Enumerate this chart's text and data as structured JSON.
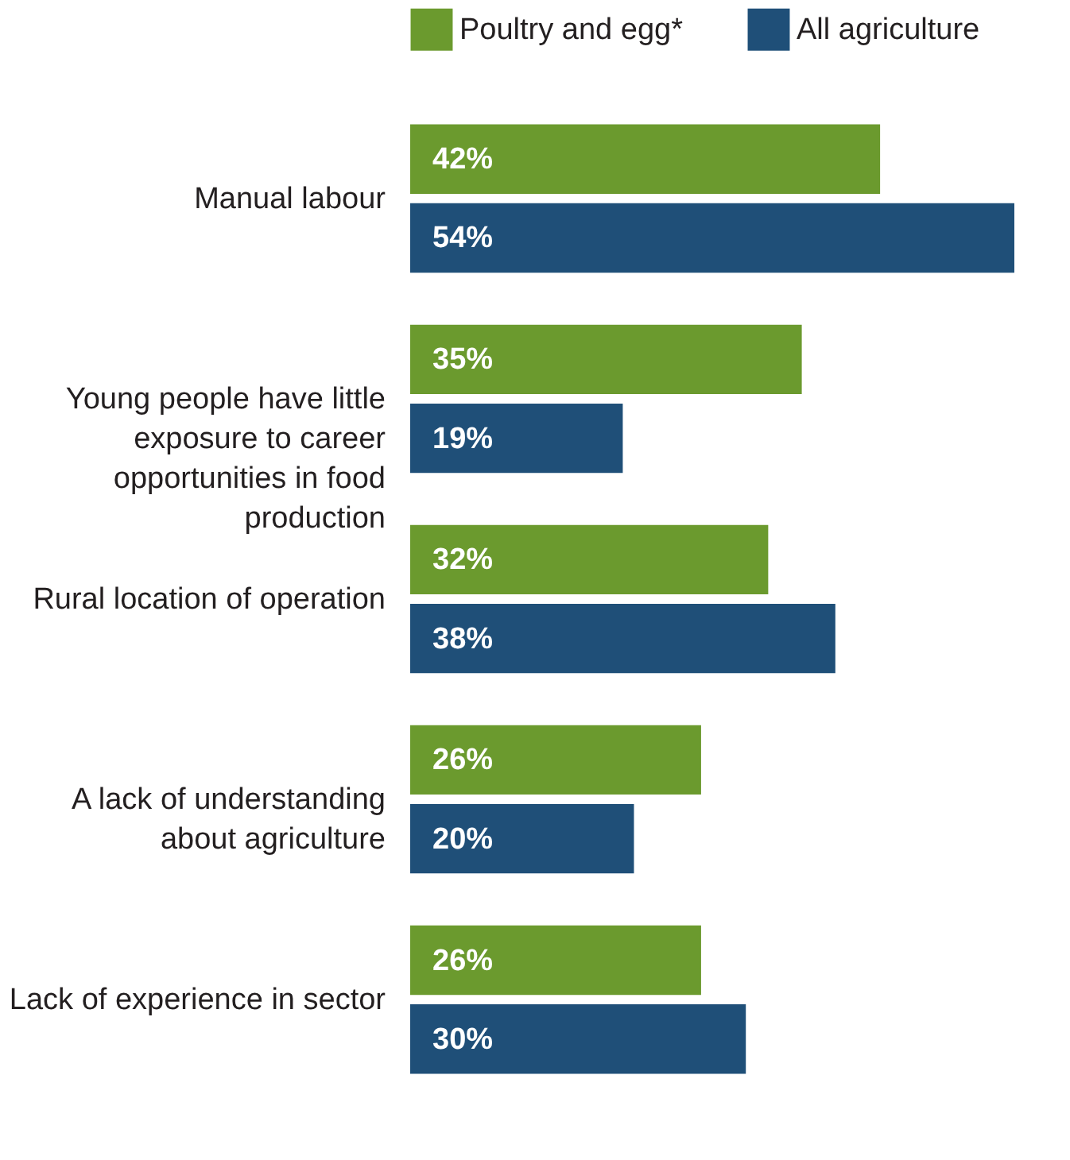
{
  "chart_data": {
    "type": "bar",
    "orientation": "horizontal",
    "legend": "top",
    "categories": [
      "Manual labour",
      "Young people have little exposure to career opportunities in food production",
      "Rural location of operation",
      "A lack of understanding about agriculture",
      "Lack of experience in sector"
    ],
    "series": [
      {
        "name": "Poultry and egg*",
        "color": "#6b9a2e",
        "values": [
          42,
          35,
          32,
          26,
          26
        ],
        "value_labels": [
          "42%",
          "35%",
          "32%",
          "26%",
          "26%"
        ]
      },
      {
        "name": "All agriculture",
        "color": "#1f4f78",
        "values": [
          54,
          19,
          38,
          20,
          30
        ],
        "value_labels": [
          "54%",
          "19%",
          "38%",
          "20%",
          "30%"
        ]
      }
    ]
  }
}
